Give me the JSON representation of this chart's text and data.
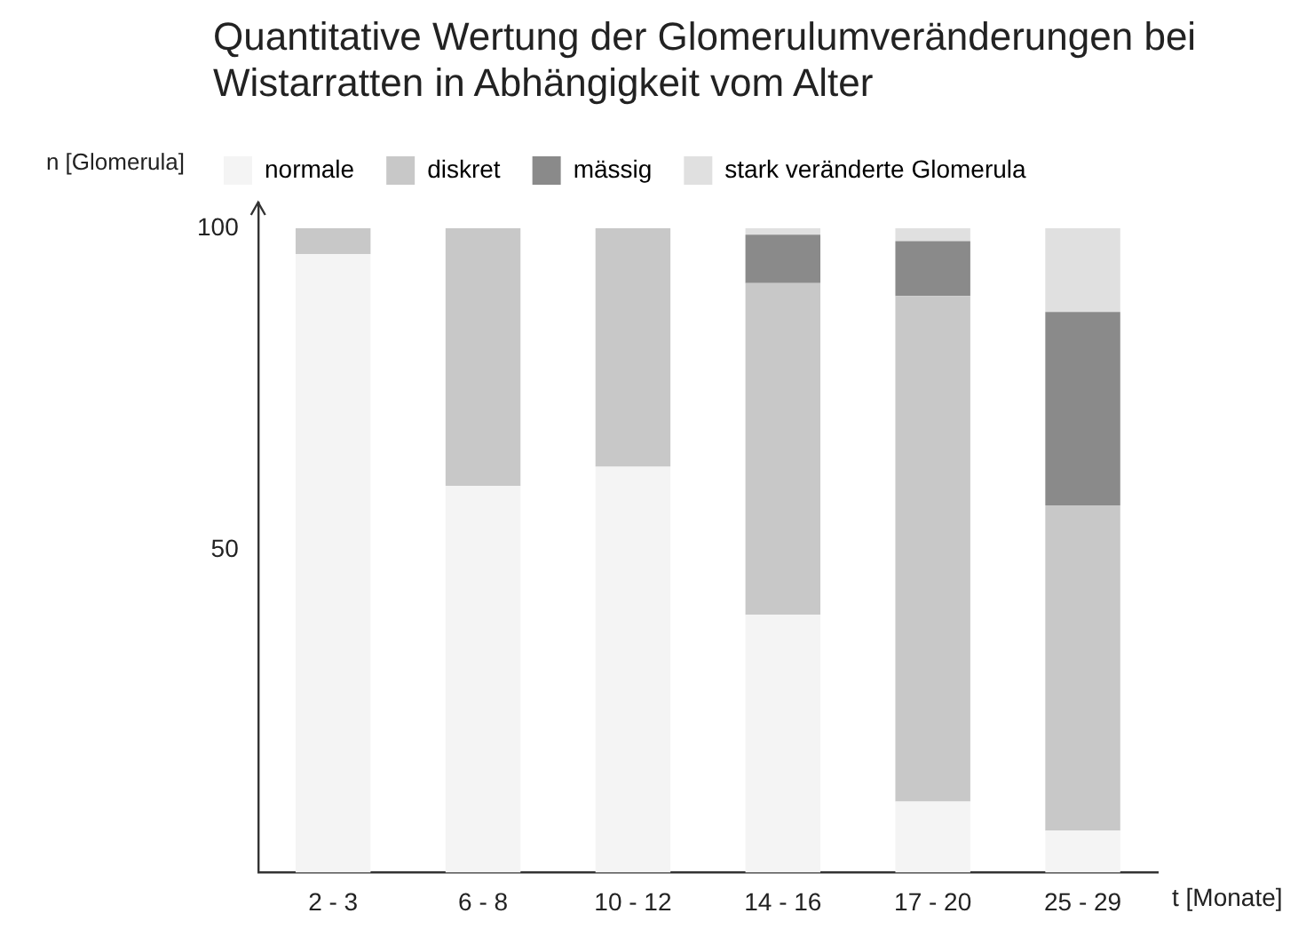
{
  "chart_data": {
    "type": "bar",
    "title": "Quantitative Wertung der Glomerulumveränderungen bei Wistarratten in Abhängigkeit vom Alter",
    "xlabel": "t [Monate]",
    "ylabel": "n [Glomerula]",
    "categories": [
      "2 - 3",
      "6 - 8",
      "10 - 12",
      "14 - 16",
      "17 - 20",
      "25 - 29"
    ],
    "stacked": true,
    "series": [
      {
        "name": "normale",
        "color": "#f4f4f4",
        "values": [
          96,
          60,
          63,
          40,
          11,
          6.5
        ]
      },
      {
        "name": "diskret",
        "color": "#c8c8c8",
        "values": [
          4,
          40,
          37,
          51.5,
          78.5,
          50.5
        ]
      },
      {
        "name": "mässig",
        "color": "#8a8a8a",
        "values": [
          null,
          null,
          null,
          7.5,
          8.5,
          30
        ]
      },
      {
        "name": "stark veränderte Glomerula",
        "color": "#e0e0e0",
        "values": [
          null,
          null,
          null,
          1,
          2,
          13
        ]
      }
    ],
    "ylim": [
      0,
      104
    ],
    "yticks": [
      50,
      100
    ],
    "grid": false,
    "legend": "top left"
  }
}
